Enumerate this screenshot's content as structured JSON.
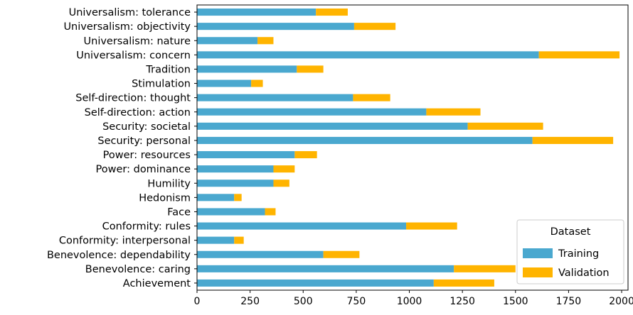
{
  "chart_data": {
    "type": "bar",
    "orientation": "horizontal",
    "stacked": true,
    "categories": [
      "Universalism: tolerance",
      "Universalism: objectivity",
      "Universalism: nature",
      "Universalism: concern",
      "Tradition",
      "Stimulation",
      "Self-direction: thought",
      "Self-direction: action",
      "Security: societal",
      "Security: personal",
      "Power: resources",
      "Power: dominance",
      "Humility",
      "Hedonism",
      "Face",
      "Conformity: rules",
      "Conformity: interpersonal",
      "Benevolence: dependability",
      "Benevolence: caring",
      "Achievement"
    ],
    "series": [
      {
        "name": "Training",
        "color": "#4aa8cf",
        "values": [
          560,
          740,
          285,
          1610,
          470,
          255,
          735,
          1080,
          1275,
          1580,
          460,
          360,
          360,
          175,
          320,
          985,
          175,
          595,
          1210,
          1115
        ]
      },
      {
        "name": "Validation",
        "color": "#ffb400",
        "values": [
          150,
          195,
          75,
          380,
          125,
          55,
          175,
          255,
          355,
          380,
          105,
          100,
          75,
          35,
          50,
          240,
          45,
          170,
          290,
          285
        ]
      }
    ],
    "xticks": [
      0,
      250,
      500,
      750,
      1000,
      1250,
      1500,
      1750,
      2000
    ],
    "xlim": [
      0,
      2030
    ],
    "legend": {
      "title": "Dataset",
      "position": "lower-right"
    },
    "grid": false
  }
}
